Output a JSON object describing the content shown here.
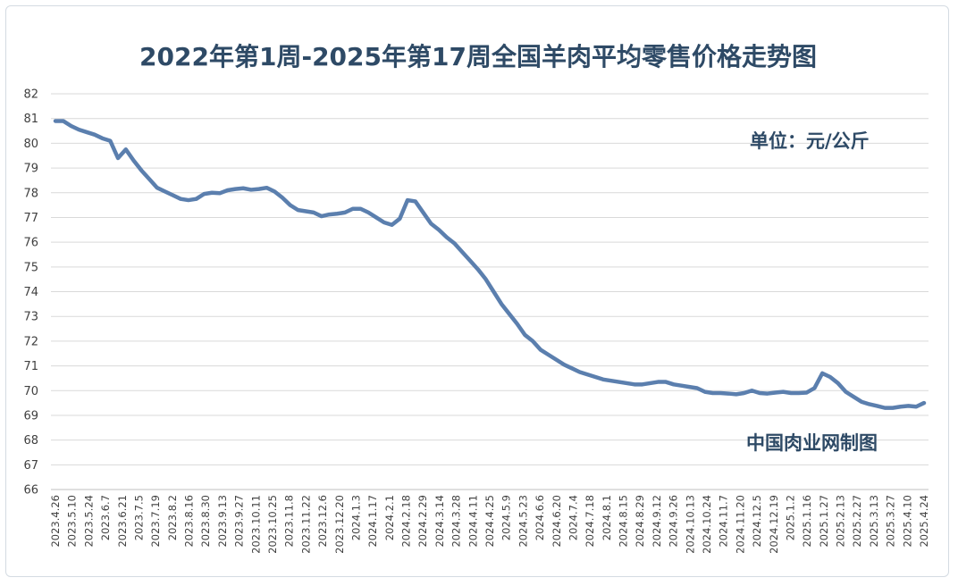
{
  "chart_data": {
    "type": "line",
    "title": "2022年第1周-2025年第17周全国羊肉平均零售价格走势图",
    "unit_label": "单位：元/公斤",
    "source_label": "中国肉业网制图",
    "ylim": [
      66,
      82
    ],
    "yticks": [
      "82",
      "81",
      "80",
      "79",
      "78",
      "77",
      "76",
      "75",
      "74",
      "73",
      "72",
      "71",
      "70",
      "69",
      "68",
      "67",
      "66"
    ],
    "grid": "horizontal",
    "line_color": "#5b7fae",
    "x_tick_labels": [
      "2023.4.26",
      "2023.5.10",
      "2023.5.24",
      "2023.6.7",
      "2023.6.21",
      "2023.7.5",
      "2023.7.19",
      "2023.8.2",
      "2023.8.16",
      "2023.8.30",
      "2023.9.13",
      "2023.9.27",
      "2023.10.11",
      "2023.10.25",
      "2023.11.8",
      "2023.11.22",
      "2023.12.6",
      "2023.12.20",
      "2024.1.3",
      "2024.1.17",
      "2024.2.1",
      "2024.2.18",
      "2024.2.29",
      "2024.3.14",
      "2024.3.28",
      "2024.4.11",
      "2024.4.25",
      "2024.5.9",
      "2024.5.23",
      "2024.6.6",
      "2024.6.20",
      "2024.7.4",
      "2024.7.18",
      "2024.8.1",
      "2024.8.15",
      "2024.8.29",
      "2024.9.12",
      "2024.9.26",
      "2024.10.13",
      "2024.10.24",
      "2024.11.7",
      "2024.11.20",
      "2024.12.5",
      "2024.12.19",
      "2025.1.2",
      "2025.1.16",
      "2025.1.27",
      "2025.2.13",
      "2025.2.27",
      "2025.3.13",
      "2025.3.27",
      "2025.4.10",
      "2025.4.24"
    ],
    "series": [
      {
        "values": [
          80.9,
          80.9,
          80.7,
          80.55,
          80.45,
          80.35,
          80.2,
          80.1,
          79.4,
          79.75,
          79.3,
          78.9,
          78.55,
          78.2,
          78.05,
          77.9,
          77.75,
          77.7,
          77.75,
          77.95,
          78.0,
          77.98,
          78.1,
          78.15,
          78.18,
          78.12,
          78.15,
          78.2,
          78.05,
          77.8,
          77.5,
          77.3,
          77.25,
          77.2,
          77.05,
          77.12,
          77.15,
          77.2,
          77.35,
          77.35,
          77.2,
          77.0,
          76.8,
          76.7,
          76.95,
          77.7,
          77.65,
          77.2,
          76.75,
          76.5,
          76.2,
          75.95,
          75.6,
          75.25,
          74.9,
          74.5,
          74.0,
          73.5,
          73.1,
          72.7,
          72.25,
          72.0,
          71.65,
          71.45,
          71.25,
          71.05,
          70.9,
          70.75,
          70.65,
          70.55,
          70.45,
          70.4,
          70.35,
          70.3,
          70.25,
          70.25,
          70.3,
          70.35,
          70.35,
          70.25,
          70.2,
          70.15,
          70.1,
          69.95,
          69.9,
          69.9,
          69.88,
          69.85,
          69.9,
          70.0,
          69.9,
          69.88,
          69.92,
          69.95,
          69.9,
          69.9,
          69.92,
          70.1,
          70.7,
          70.55,
          70.3,
          69.95,
          69.75,
          69.55,
          69.45,
          69.38,
          69.3,
          69.3,
          69.35,
          69.38,
          69.35,
          69.5
        ]
      }
    ]
  }
}
